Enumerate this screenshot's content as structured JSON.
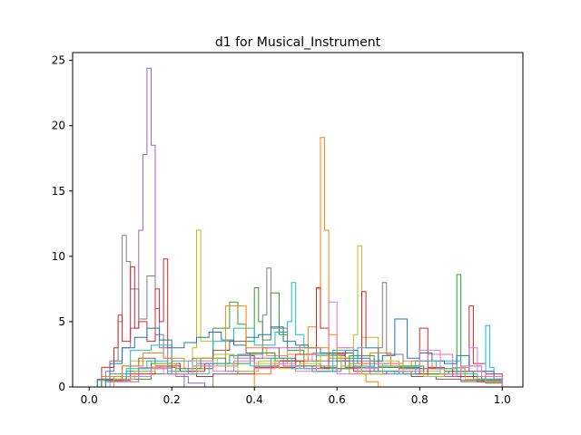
{
  "chart_data": {
    "type": "histogram-step",
    "title": "d1 for Musical_Instrument",
    "xlabel": "",
    "ylabel": "",
    "xlim": [
      -0.04,
      1.05
    ],
    "ylim": [
      0,
      25.6
    ],
    "x_ticks": [
      0.0,
      0.2,
      0.4,
      0.6,
      0.8,
      1.0
    ],
    "x_tick_labels": [
      "0.0",
      "0.2",
      "0.4",
      "0.6",
      "0.8",
      "1.0"
    ],
    "y_ticks": [
      0,
      5,
      10,
      15,
      20,
      25
    ],
    "y_tick_labels": [
      "0",
      "5",
      "10",
      "15",
      "20",
      "25"
    ],
    "grid": false,
    "legend": "none",
    "colors": [
      "#1f77b4",
      "#ff7f0e",
      "#2ca02c",
      "#d62728",
      "#9467bd",
      "#8c564b",
      "#e377c2",
      "#7f7f7f",
      "#bcbd22",
      "#17becf"
    ],
    "series": [
      {
        "color": "#9467bd",
        "edges": [
          0.02,
          0.04,
          0.06,
          0.08,
          0.1,
          0.12,
          0.13,
          0.14,
          0.15,
          0.16,
          0.17,
          0.19,
          0.21,
          0.24,
          0.28
        ],
        "values": [
          0.5,
          1.2,
          2.0,
          3.0,
          4.5,
          12.0,
          17.8,
          24.4,
          18.5,
          6.0,
          3.0,
          1.5,
          0.8,
          0.3
        ]
      },
      {
        "color": "#ff7f0e",
        "edges": [
          0.4,
          0.44,
          0.48,
          0.51,
          0.53,
          0.55,
          0.56,
          0.57,
          0.58,
          0.6,
          0.63,
          0.67,
          0.7
        ],
        "values": [
          1.0,
          1.8,
          2.5,
          3.2,
          4.6,
          7.5,
          19.1,
          12.0,
          4.0,
          2.0,
          1.0,
          0.4
        ]
      },
      {
        "color": "#7f7f7f",
        "edges": [
          0.03,
          0.05,
          0.07,
          0.08,
          0.09,
          0.1,
          0.12,
          0.14,
          0.16,
          0.18,
          0.2,
          0.23
        ],
        "values": [
          0.8,
          2.0,
          5.0,
          11.6,
          9.6,
          7.5,
          5.2,
          8.5,
          4.0,
          2.2,
          1.0
        ]
      },
      {
        "color": "#bcbd22",
        "edges": [
          0.05,
          0.1,
          0.15,
          0.2,
          0.25,
          0.26,
          0.27,
          0.3,
          0.35,
          0.4,
          0.45,
          0.5,
          0.55,
          0.6,
          0.64,
          0.65,
          0.66,
          0.7,
          0.75,
          0.8,
          0.85,
          0.9,
          0.95,
          1.0
        ],
        "values": [
          1.0,
          2.0,
          1.5,
          1.2,
          3.0,
          12.0,
          3.5,
          2.5,
          2.2,
          1.8,
          2.0,
          1.6,
          2.4,
          3.0,
          4.0,
          10.8,
          3.8,
          2.0,
          1.5,
          1.2,
          1.0,
          0.8,
          0.6
        ]
      },
      {
        "color": "#d62728",
        "edges": [
          0.03,
          0.06,
          0.07,
          0.08,
          0.1,
          0.11,
          0.12,
          0.14,
          0.16,
          0.17,
          0.18,
          0.19,
          0.2,
          0.22,
          0.26,
          0.3,
          0.4,
          0.5,
          0.55,
          0.56,
          0.58,
          0.62,
          0.66,
          0.67,
          0.7,
          0.76,
          0.8,
          0.82,
          0.86,
          0.92,
          0.93,
          0.96,
          1.0
        ],
        "values": [
          1.5,
          3.0,
          5.5,
          3.5,
          9.2,
          4.5,
          5.0,
          3.5,
          7.5,
          5.0,
          9.8,
          3.0,
          1.8,
          1.2,
          0.8,
          1.0,
          1.5,
          2.5,
          7.6,
          4.5,
          2.5,
          1.5,
          7.3,
          3.0,
          1.5,
          1.0,
          4.5,
          1.5,
          1.2,
          6.2,
          1.8,
          1.0
        ]
      },
      {
        "color": "#2ca02c",
        "edges": [
          0.05,
          0.15,
          0.25,
          0.3,
          0.34,
          0.36,
          0.38,
          0.4,
          0.41,
          0.42,
          0.44,
          0.46,
          0.48,
          0.52,
          0.56,
          0.6,
          0.65,
          0.7,
          0.8,
          0.89,
          0.9,
          0.91,
          0.95,
          1.0
        ],
        "values": [
          0.6,
          1.0,
          2.2,
          4.5,
          6.5,
          4.8,
          3.5,
          7.6,
          5.0,
          3.6,
          7.2,
          4.0,
          2.8,
          2.0,
          1.5,
          2.2,
          1.8,
          1.5,
          1.0,
          8.6,
          1.5,
          0.8,
          0.5
        ]
      },
      {
        "color": "#17becf",
        "edges": [
          0.05,
          0.1,
          0.15,
          0.2,
          0.25,
          0.3,
          0.35,
          0.4,
          0.45,
          0.48,
          0.49,
          0.5,
          0.52,
          0.55,
          0.6,
          0.65,
          0.7,
          0.75,
          0.8,
          0.85,
          0.9,
          0.96,
          0.97,
          0.98,
          1.0
        ],
        "values": [
          1.0,
          2.8,
          3.2,
          2.0,
          1.6,
          3.5,
          4.5,
          3.2,
          4.2,
          5.0,
          8.0,
          4.0,
          3.0,
          2.5,
          2.0,
          3.0,
          1.6,
          1.4,
          1.0,
          2.0,
          1.2,
          4.7,
          1.5,
          0.6
        ]
      },
      {
        "color": "#8c564b",
        "edges": [
          0.04,
          0.08,
          0.12,
          0.16,
          0.2,
          0.26,
          0.3,
          0.34,
          0.38,
          0.42,
          0.46,
          0.5,
          0.55,
          0.6,
          0.66,
          0.72,
          0.78,
          0.84,
          0.9,
          0.96,
          1.0
        ],
        "values": [
          0.5,
          1.6,
          2.2,
          1.8,
          1.0,
          1.4,
          2.8,
          3.5,
          2.6,
          3.0,
          2.2,
          1.6,
          1.2,
          1.4,
          1.0,
          1.2,
          0.8,
          0.6,
          0.5,
          0.3
        ]
      },
      {
        "color": "#e377c2",
        "edges": [
          0.06,
          0.12,
          0.18,
          0.24,
          0.3,
          0.36,
          0.42,
          0.48,
          0.54,
          0.58,
          0.6,
          0.64,
          0.7,
          0.76,
          0.82,
          0.88,
          0.92,
          0.94,
          0.98,
          1.0
        ],
        "values": [
          0.8,
          1.5,
          1.0,
          2.0,
          1.6,
          2.2,
          3.0,
          2.0,
          2.6,
          6.5,
          3.0,
          1.8,
          1.2,
          2.0,
          2.5,
          1.5,
          3.0,
          1.2,
          0.5
        ]
      },
      {
        "color": "#7f7f7f",
        "edges": [
          0.3,
          0.36,
          0.42,
          0.43,
          0.44,
          0.48,
          0.55,
          0.62,
          0.7,
          0.71,
          0.72,
          0.76,
          0.82,
          0.9,
          1.0
        ],
        "values": [
          1.0,
          2.5,
          5.5,
          9.1,
          4.5,
          3.0,
          2.0,
          1.5,
          3.0,
          8.0,
          2.5,
          1.4,
          1.0,
          0.4
        ]
      },
      {
        "color": "#1f77b4",
        "edges": [
          0.02,
          0.05,
          0.08,
          0.11,
          0.14,
          0.17,
          0.2,
          0.23,
          0.26,
          0.29,
          0.32,
          0.35,
          0.38,
          0.41,
          0.44,
          0.47,
          0.5,
          0.53,
          0.56,
          0.59,
          0.62,
          0.65,
          0.68,
          0.71,
          0.74,
          0.77,
          0.8,
          0.83,
          0.86,
          0.89,
          0.92,
          0.95,
          0.98,
          1.0
        ],
        "values": [
          0.6,
          1.8,
          3.0,
          3.8,
          4.5,
          3.6,
          3.0,
          3.4,
          3.8,
          4.2,
          3.6,
          3.2,
          3.8,
          4.0,
          4.6,
          3.5,
          3.2,
          3.0,
          2.6,
          2.4,
          2.8,
          2.2,
          2.0,
          2.4,
          5.2,
          2.2,
          2.6,
          2.0,
          1.8,
          2.4,
          1.6,
          1.2,
          0.6
        ]
      },
      {
        "color": "#ff7f0e",
        "edges": [
          0.03,
          0.08,
          0.13,
          0.18,
          0.23,
          0.28,
          0.33,
          0.38,
          0.43,
          0.48,
          0.53,
          0.58,
          0.63,
          0.68,
          0.73,
          0.78,
          0.83,
          0.88,
          0.93,
          0.98,
          1.0
        ],
        "values": [
          0.8,
          1.6,
          2.6,
          2.2,
          1.4,
          1.8,
          6.2,
          3.0,
          2.4,
          2.0,
          3.0,
          2.2,
          1.8,
          2.6,
          1.6,
          2.0,
          1.4,
          1.2,
          0.8,
          0.4
        ]
      },
      {
        "color": "#2ca02c",
        "edges": [
          0.03,
          0.09,
          0.15,
          0.21,
          0.27,
          0.33,
          0.39,
          0.45,
          0.51,
          0.57,
          0.63,
          0.69,
          0.75,
          0.81,
          0.87,
          0.93,
          1.0
        ],
        "values": [
          0.6,
          1.2,
          1.8,
          1.4,
          2.2,
          1.8,
          2.6,
          2.0,
          1.6,
          1.4,
          2.4,
          1.2,
          1.6,
          1.0,
          1.2,
          0.6
        ]
      },
      {
        "color": "#d62728",
        "edges": [
          0.04,
          0.1,
          0.16,
          0.22,
          0.28,
          0.34,
          0.4,
          0.46,
          0.52,
          0.58,
          0.64,
          0.7,
          0.76,
          0.82,
          0.88,
          0.94,
          1.0
        ],
        "values": [
          0.5,
          1.0,
          1.6,
          1.2,
          1.8,
          2.4,
          1.6,
          2.0,
          1.4,
          2.6,
          1.2,
          1.8,
          1.0,
          1.4,
          0.8,
          0.4
        ]
      },
      {
        "color": "#9467bd",
        "edges": [
          0.05,
          0.12,
          0.19,
          0.26,
          0.33,
          0.4,
          0.47,
          0.54,
          0.61,
          0.68,
          0.75,
          0.82,
          0.89,
          0.96,
          1.0
        ],
        "values": [
          0.4,
          1.4,
          1.0,
          1.8,
          1.2,
          2.2,
          1.6,
          1.2,
          2.0,
          1.0,
          1.4,
          0.8,
          1.2,
          0.5
        ]
      },
      {
        "color": "#bcbd22",
        "edges": [
          0.06,
          0.11,
          0.16,
          0.21,
          0.26,
          0.31,
          0.36,
          0.41,
          0.46,
          0.51,
          0.56,
          0.61,
          0.66,
          0.71,
          0.76,
          0.81,
          0.86,
          0.91,
          0.96,
          1.0
        ],
        "values": [
          0.6,
          1.2,
          1.8,
          1.0,
          2.2,
          1.6,
          1.2,
          2.0,
          1.4,
          1.8,
          2.4,
          1.6,
          1.0,
          1.8,
          1.2,
          0.8,
          1.4,
          0.6,
          0.4
        ]
      },
      {
        "color": "#17becf",
        "edges": [
          0.04,
          0.09,
          0.14,
          0.19,
          0.24,
          0.29,
          0.34,
          0.39,
          0.44,
          0.49,
          0.54,
          0.59,
          0.64,
          0.69,
          0.74,
          0.79,
          0.84,
          0.89,
          0.94,
          1.0
        ],
        "values": [
          0.4,
          1.4,
          2.0,
          1.2,
          1.0,
          1.8,
          2.4,
          1.6,
          2.2,
          1.4,
          1.2,
          2.8,
          1.6,
          1.2,
          1.0,
          2.0,
          1.4,
          1.0,
          0.6
        ]
      },
      {
        "color": "#e377c2",
        "edges": [
          0.05,
          0.1,
          0.15,
          0.2,
          0.25,
          0.3,
          0.35,
          0.4,
          0.45,
          0.5,
          0.55,
          0.6,
          0.65,
          0.7,
          0.75,
          0.8,
          0.85,
          0.9,
          0.95,
          1.0
        ],
        "values": [
          0.4,
          0.8,
          1.4,
          1.0,
          1.6,
          1.2,
          2.0,
          1.4,
          1.8,
          1.2,
          1.6,
          1.0,
          1.4,
          1.8,
          1.2,
          2.8,
          1.0,
          1.6,
          0.8
        ]
      }
    ]
  }
}
